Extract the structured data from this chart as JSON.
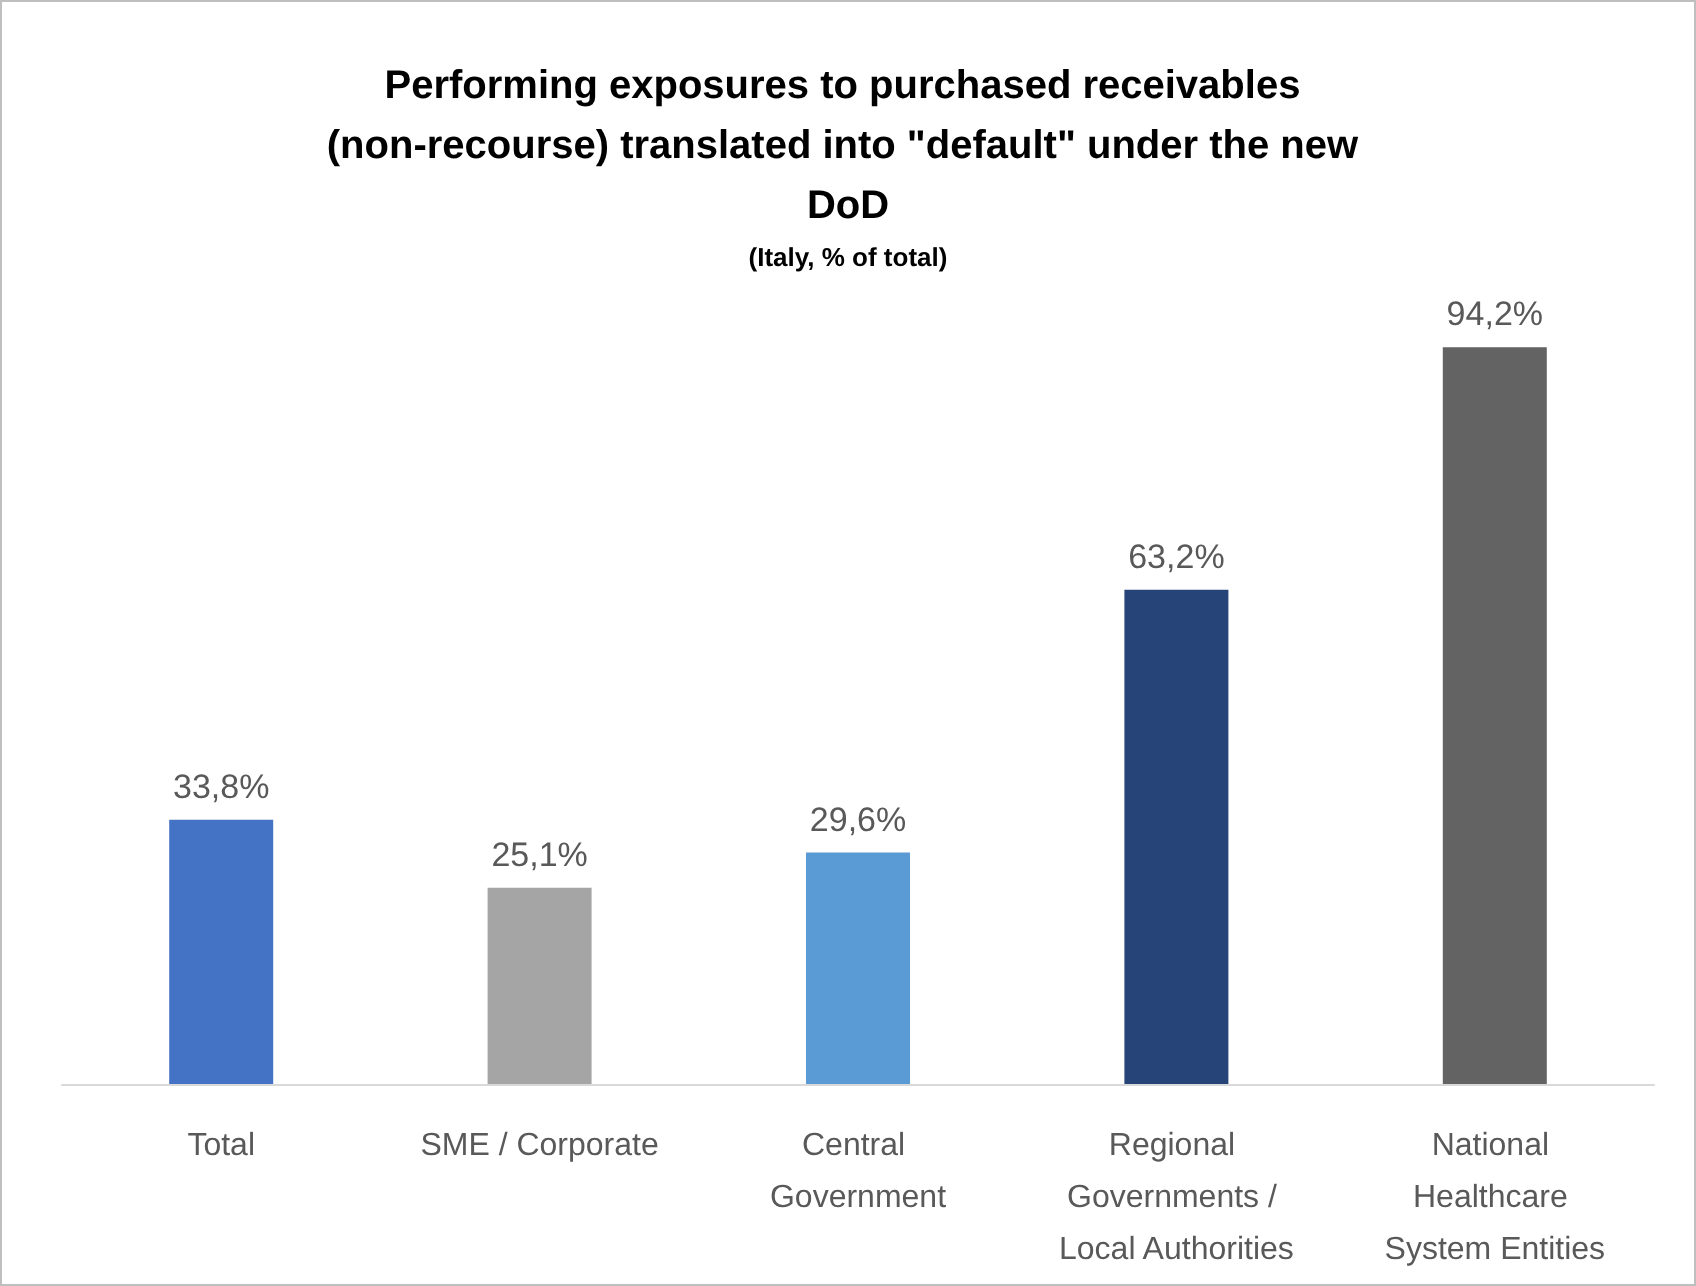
{
  "chart_data": {
    "type": "bar",
    "title": "Performing exposures to purchased receivables (non-recourse) translated into \"default\" under the new DoD",
    "subtitle": "(Italy, % of total)",
    "categories": [
      "Total",
      "SME / Corporate",
      "Central Government",
      "Regional Governments / Local Authorities",
      "National Healthcare System Entities"
    ],
    "values": [
      33.8,
      25.1,
      29.6,
      63.2,
      94.2
    ],
    "colors": [
      "#4472c4",
      "#a5a5a5",
      "#5b9bd5",
      "#264478",
      "#636363"
    ],
    "value_labels": [
      "33,8%",
      "25,1%",
      "29,6%",
      "63,2%",
      "94,2%"
    ]
  }
}
